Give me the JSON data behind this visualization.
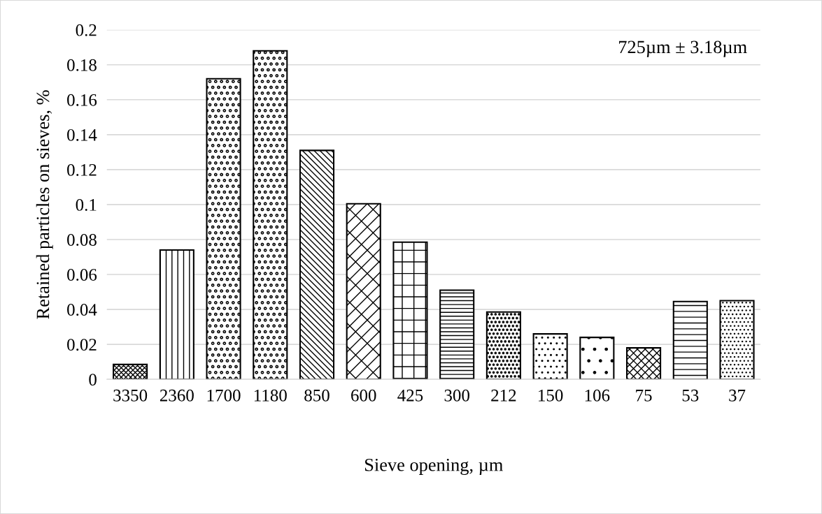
{
  "chart_data": {
    "type": "bar",
    "xlabel": "Sieve opening, µm",
    "ylabel": "Retained particles on sieves, %",
    "categories": [
      "3350",
      "2360",
      "1700",
      "1180",
      "850",
      "600",
      "425",
      "300",
      "212",
      "150",
      "106",
      "75",
      "53",
      "37"
    ],
    "values": [
      0.0085,
      0.074,
      0.172,
      0.188,
      0.131,
      0.1005,
      0.0785,
      0.051,
      0.0385,
      0.026,
      0.024,
      0.018,
      0.0445,
      0.045
    ],
    "color": "#000000",
    "ylim": [
      0,
      0.2
    ],
    "yticks": [
      0,
      {
        "value": 0.02,
        "label": "0.02"
      },
      {
        "value": 0.04,
        "label": "0.04"
      },
      {
        "value": 0.06,
        "label": "0.06"
      },
      {
        "value": 0.08,
        "label": "0.08"
      },
      {
        "value": 0.1,
        "label": "0.1"
      },
      {
        "value": 0.12,
        "label": "0.12"
      },
      {
        "value": 0.14,
        "label": "0.14"
      },
      {
        "value": 0.16,
        "label": "0.16"
      },
      {
        "value": 0.18,
        "label": "0.18"
      },
      {
        "value": 0.2,
        "label": "0.2"
      }
    ],
    "grid": "y",
    "annotations": [
      "725µm ± 3.18µm"
    ]
  }
}
